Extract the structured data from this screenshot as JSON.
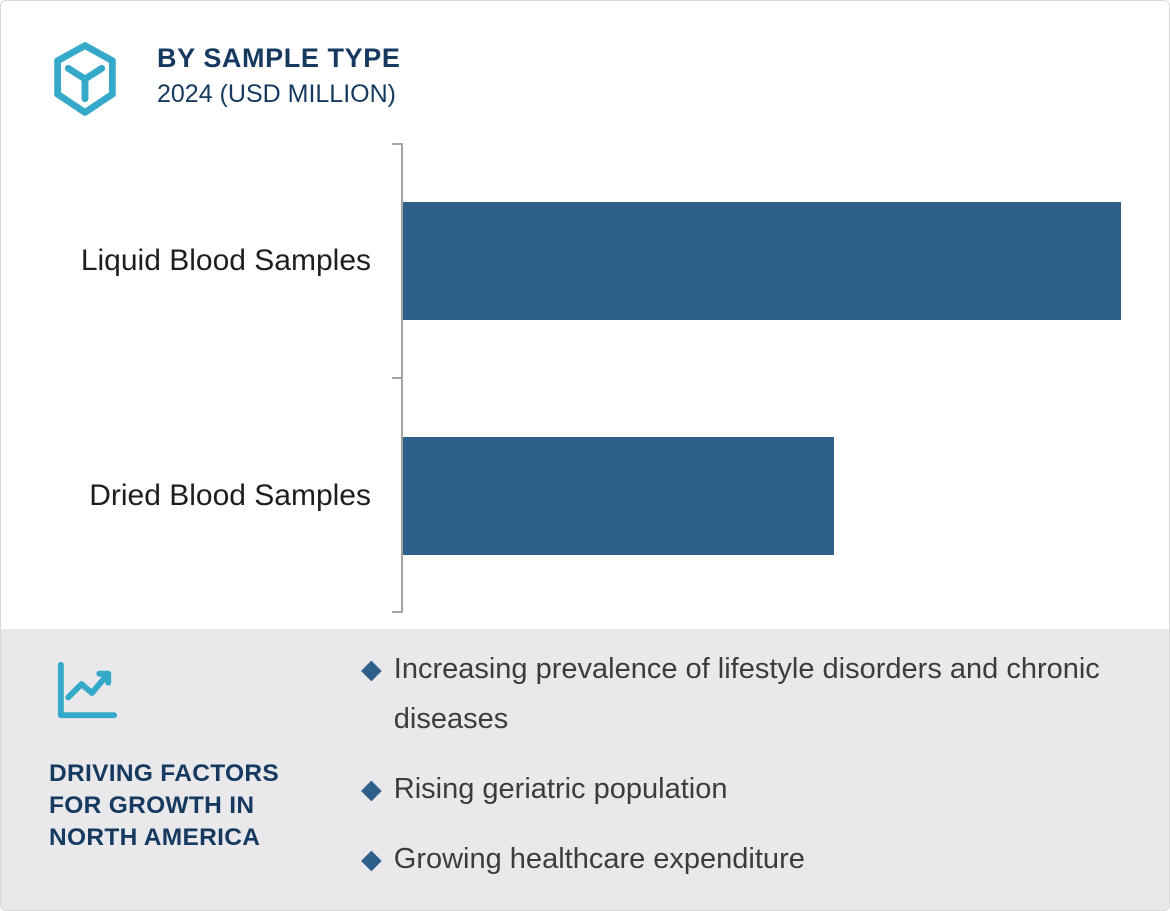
{
  "header": {
    "title": "BY SAMPLE TYPE",
    "subtitle": "2024 (USD MILLION)"
  },
  "chart_data": {
    "type": "bar",
    "orientation": "horizontal",
    "title": "BY SAMPLE TYPE",
    "subtitle": "2024 (USD MILLION)",
    "categories": [
      "Liquid Blood Samples",
      "Dried Blood Samples"
    ],
    "values_pct_of_max": [
      100,
      60
    ],
    "value_labels_shown": false,
    "axis_tick_values_shown": false,
    "bar_color": "#2f608c",
    "xlabel": "",
    "ylabel": ""
  },
  "driving_factors": {
    "heading": "DRIVING FACTORS FOR GROWTH IN NORTH AMERICA",
    "items": [
      "Increasing prevalence of lifestyle disorders and chronic diseases",
      "Rising geriatric population",
      "Growing healthcare expenditure"
    ],
    "bullet_glyph": "◆"
  },
  "colors": {
    "accent_teal": "#35a9c9",
    "navy_text": "#16395f",
    "bar_blue": "#2f608c",
    "footer_bg": "#e9e9eb",
    "body_text": "#3c3c3c"
  }
}
